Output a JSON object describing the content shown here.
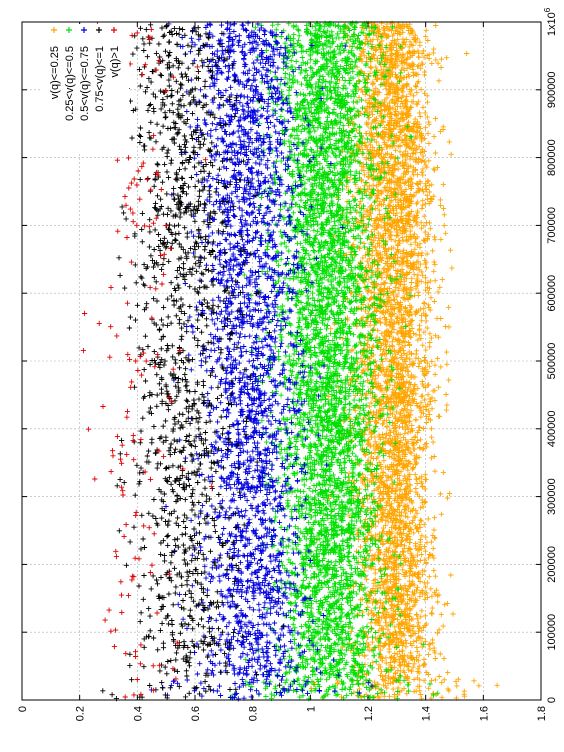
{
  "chart_data": {
    "type": "scatter",
    "orientation": "rotated-90-ccw",
    "x_range": [
      0,
      1000000
    ],
    "y_range": [
      0,
      1.8
    ],
    "x_ticks": [
      "0",
      "100000",
      "200000",
      "300000",
      "400000",
      "500000",
      "600000",
      "700000",
      "800000",
      "900000",
      "1x10"
    ],
    "x_tick_exponent": "6",
    "y_ticks": [
      "0",
      "0.2",
      "0.4",
      "0.6",
      "0.8",
      "1",
      "1.2",
      "1.4",
      "1.6",
      "1.8"
    ],
    "grid": true,
    "legend_position": "top-right",
    "marker": "plus",
    "series": [
      {
        "name": "v(q)<=0.25",
        "color": "#ffa500",
        "y_center": 1.28,
        "y_spread": 0.07,
        "count": 4200
      },
      {
        "name": "0.25<v(q)<=0.5",
        "color": "#00e000",
        "y_center": 1.05,
        "y_spread": 0.09,
        "count": 4600
      },
      {
        "name": "0.5<v(q)<=0.75",
        "color": "#0000e0",
        "y_center": 0.78,
        "y_spread": 0.09,
        "count": 2600
      },
      {
        "name": "0.75<v(q)<=1",
        "color": "#000000",
        "y_center": 0.55,
        "y_spread": 0.09,
        "count": 1300
      },
      {
        "name": "v(q)>1",
        "color": "#e00000",
        "y_center": 0.38,
        "y_spread": 0.08,
        "count": 160
      }
    ]
  }
}
